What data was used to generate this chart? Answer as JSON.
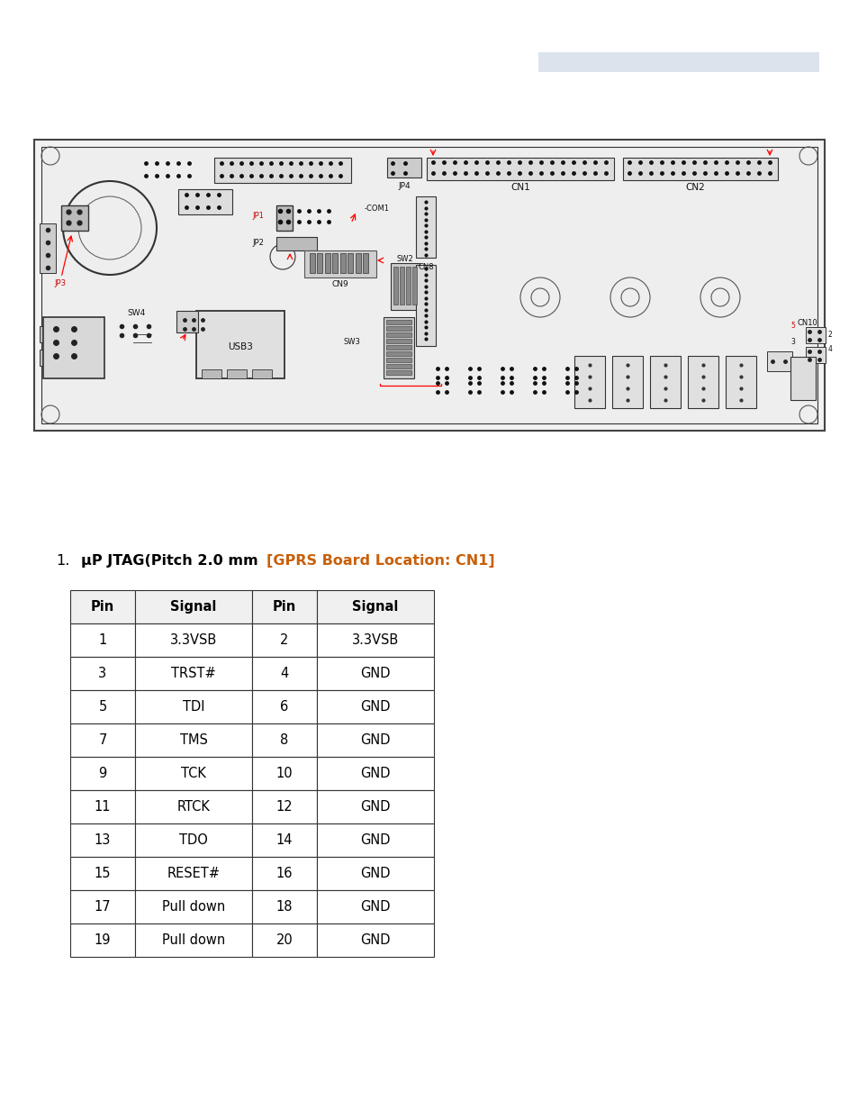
{
  "page_bg": "#ffffff",
  "header_bar_color": "#dce3ed",
  "section_title_normal": "μP JTAG(Pitch 2.0 mm ",
  "section_title_bracket": "[GPRS Board Location: CN1]",
  "section_title_color_normal": "#000000",
  "section_title_color_bracket": "#c8600a",
  "table_header": [
    "Pin",
    "Signal",
    "Pin",
    "Signal"
  ],
  "table_rows": [
    [
      "1",
      "3.3VSB",
      "2",
      "3.3VSB"
    ],
    [
      "3",
      "TRST#",
      "4",
      "GND"
    ],
    [
      "5",
      "TDI",
      "6",
      "GND"
    ],
    [
      "7",
      "TMS",
      "8",
      "GND"
    ],
    [
      "9",
      "TCK",
      "10",
      "GND"
    ],
    [
      "11",
      "RTCK",
      "12",
      "GND"
    ],
    [
      "13",
      "TDO",
      "14",
      "GND"
    ],
    [
      "15",
      "RESET#",
      "16",
      "GND"
    ],
    [
      "17",
      "Pull down",
      "18",
      "GND"
    ],
    [
      "19",
      "Pull down",
      "20",
      "GND"
    ]
  ]
}
